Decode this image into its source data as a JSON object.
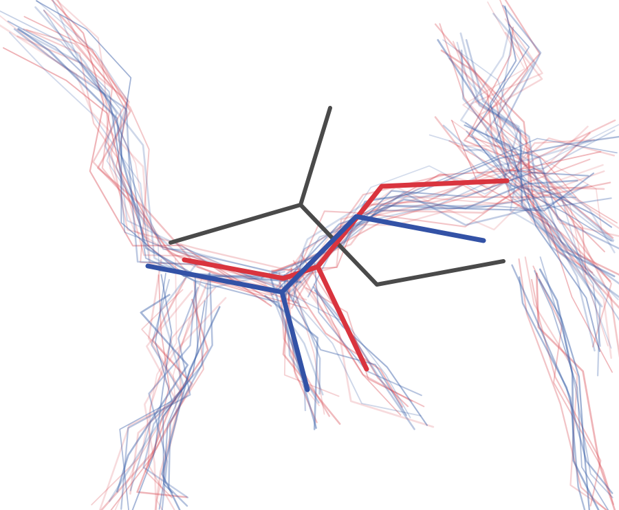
{
  "image": {
    "kind": "molecular-structure-ensemble-render",
    "palette": {
      "ensemble_a": "#d94c55",
      "ensemble_b": "#3b5fa8",
      "reference": "#4a4a4a",
      "background": "#ffffff"
    },
    "layers": [
      {
        "name": "ensemble-red-strands",
        "color_key": "ensemble_a"
      },
      {
        "name": "ensemble-blue-strands",
        "color_key": "ensemble_b"
      },
      {
        "name": "reference-fragment",
        "color_key": "reference"
      },
      {
        "name": "highlight-red-fragment",
        "color_key": "ensemble_a"
      },
      {
        "name": "highlight-blue-fragment",
        "color_key": "ensemble_b"
      }
    ]
  }
}
